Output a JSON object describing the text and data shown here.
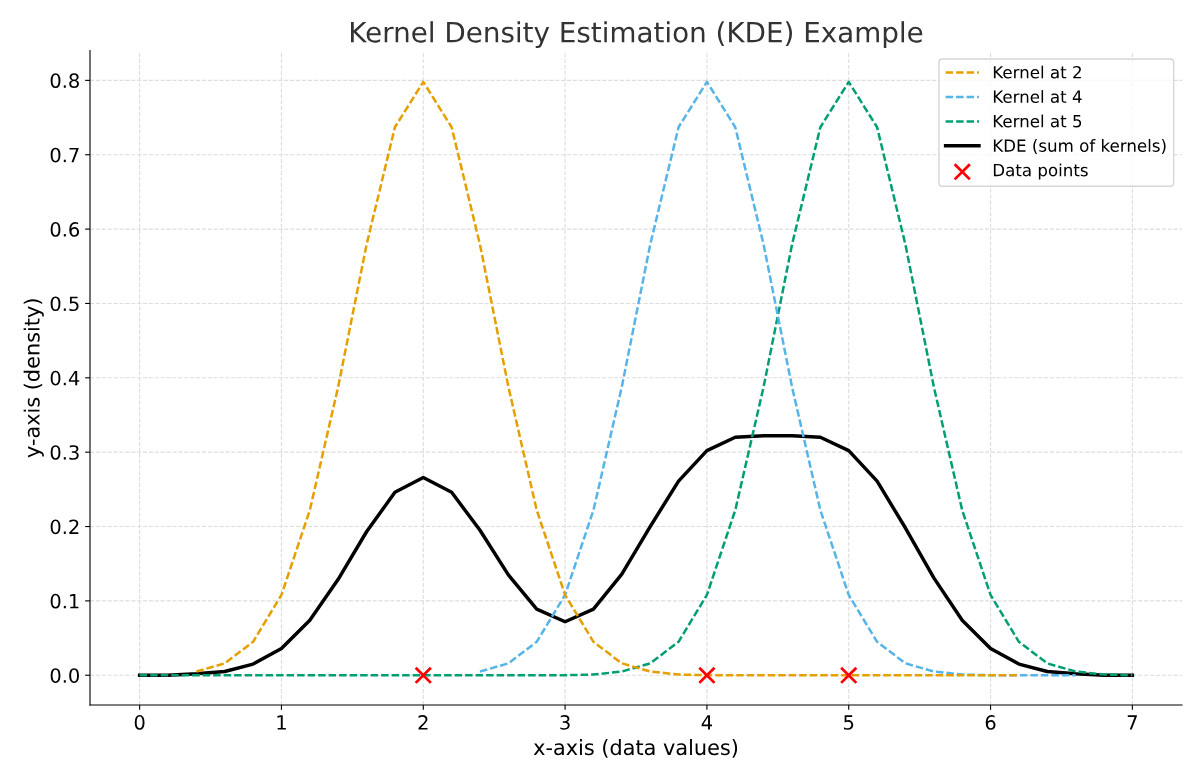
{
  "chart_data": {
    "type": "line",
    "title": "Kernel Density Estimation (KDE) Example",
    "xlabel": "x-axis (data values)",
    "ylabel": "y-axis (density)",
    "xlim": [
      -0.35,
      7.35
    ],
    "ylim": [
      -0.04,
      0.84
    ],
    "xticks": [
      0,
      1,
      2,
      3,
      4,
      5,
      6,
      7
    ],
    "yticks": [
      {
        "value": 0,
        "label": "0.0"
      },
      0.1,
      0.2,
      0.3,
      0.4,
      0.5,
      0.6,
      0.7,
      0.8
    ],
    "grid": true,
    "legend": "top right",
    "x": [
      0,
      0.2,
      0.4,
      0.6,
      0.8,
      1.0,
      1.2,
      1.4,
      1.6,
      1.8,
      2.0,
      2.2,
      2.4,
      2.6,
      2.8,
      3.0,
      3.2,
      3.4,
      3.6,
      3.8,
      4.0,
      4.2,
      4.4,
      4.6,
      4.8,
      5.0,
      5.2,
      5.4,
      5.6,
      5.8,
      6.0,
      6.2,
      6.4,
      6.6,
      6.8,
      7.0
    ],
    "series": [
      {
        "name": "Kernel at 2",
        "color": "#e69f00",
        "line_style": "dashed",
        "values": [
          null,
          null,
          0.005,
          0.016,
          0.045,
          0.108,
          0.222,
          0.388,
          0.579,
          0.737,
          0.798,
          0.737,
          0.579,
          0.388,
          0.222,
          0.108,
          0.045,
          0.016,
          0.005,
          0.001,
          0,
          0,
          0,
          0,
          0,
          0,
          0,
          0,
          0,
          0,
          0,
          0,
          null,
          null,
          null,
          null
        ]
      },
      {
        "name": "Kernel at 4",
        "color": "#56b4e9",
        "line_style": "dashed",
        "values": [
          null,
          null,
          null,
          null,
          null,
          null,
          null,
          null,
          null,
          null,
          null,
          null,
          0.005,
          0.016,
          0.045,
          0.108,
          0.222,
          0.388,
          0.579,
          0.737,
          0.798,
          0.737,
          0.579,
          0.388,
          0.222,
          0.108,
          0.045,
          0.016,
          0.005,
          0.001,
          0,
          0,
          0,
          0,
          null,
          null
        ]
      },
      {
        "name": "Kernel at 5",
        "color": "#009e73",
        "line_style": "dashed",
        "values": [
          0,
          0,
          0,
          0,
          0,
          0,
          0,
          0,
          0,
          0,
          0,
          0,
          0,
          0,
          0,
          0,
          0.001,
          0.005,
          0.016,
          0.045,
          0.108,
          0.222,
          0.388,
          0.579,
          0.737,
          0.798,
          0.737,
          0.579,
          0.388,
          0.222,
          0.108,
          0.045,
          0.016,
          0.005,
          0.001,
          0
        ]
      },
      {
        "name": "KDE (sum of kernels)",
        "color": "#000000",
        "line_style": "solid",
        "values": [
          0,
          0,
          0.002,
          0.005,
          0.015,
          0.036,
          0.074,
          0.129,
          0.193,
          0.246,
          0.266,
          0.246,
          0.195,
          0.135,
          0.089,
          0.072,
          0.089,
          0.136,
          0.2,
          0.261,
          0.302,
          0.32,
          0.322,
          0.322,
          0.32,
          0.302,
          0.261,
          0.198,
          0.131,
          0.074,
          0.036,
          0.015,
          0.005,
          0.002,
          0,
          0
        ]
      },
      {
        "name": "Data points",
        "type": "scatter",
        "marker": "cross",
        "color": "#ff0000",
        "x": [
          2,
          4,
          5
        ],
        "values": [
          0,
          0,
          0
        ]
      }
    ]
  }
}
